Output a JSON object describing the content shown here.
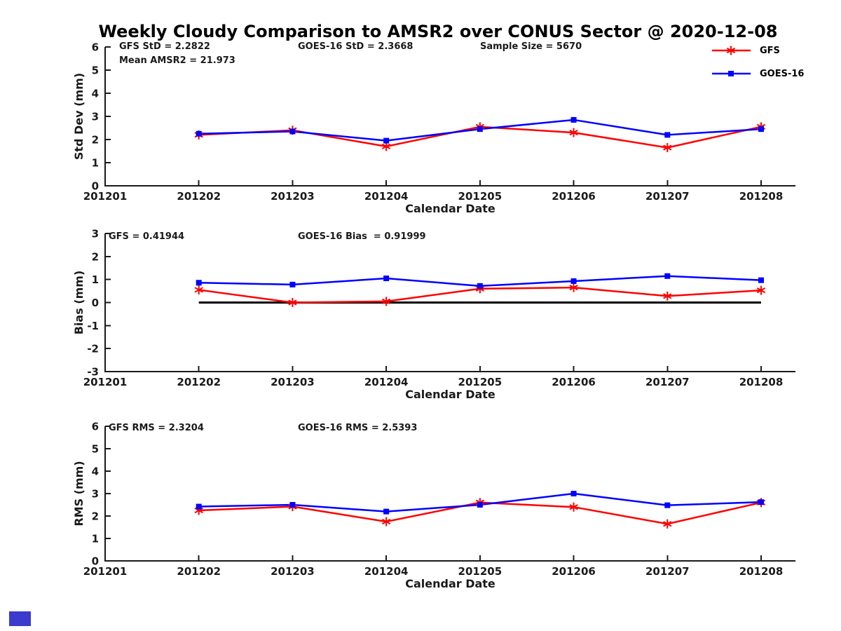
{
  "title": "Weekly Cloudy Comparison to AMSR2 over CONUS Sector @ 2020-12-08",
  "colors": {
    "gfs": "#ff0000",
    "goes16": "#0000ff",
    "axis": "#1a1a1a",
    "zero_line": "#000000",
    "blue_box": "#3b3bcd"
  },
  "legend": {
    "items": [
      {
        "label": "GFS",
        "marker": "asterisk",
        "color": "#ff0000"
      },
      {
        "label": "GOES-16",
        "marker": "square",
        "color": "#0000ff"
      }
    ]
  },
  "chart_data": [
    {
      "type": "line",
      "name": "std-dev-chart",
      "ylabel": "Std Dev (mm)",
      "xlabel": "Calendar Date",
      "ylim": [
        0,
        6
      ],
      "yticks": [
        0,
        1,
        2,
        3,
        4,
        5,
        6
      ],
      "xticklabels": [
        "201201",
        "201202",
        "201203",
        "201204",
        "201205",
        "201206",
        "201207",
        "201208"
      ],
      "categories": [
        "201202",
        "201203",
        "201204",
        "201205",
        "201206",
        "201207",
        "201208"
      ],
      "annotations": [
        "GFS StD = 2.2822",
        "GOES-16 StD = 2.3668",
        "Sample Size = 5670",
        "Mean AMSR2 = 21.973"
      ],
      "series": [
        {
          "name": "GFS",
          "color": "#ff0000",
          "marker": "asterisk",
          "width": 2.5,
          "values": [
            2.2,
            2.4,
            1.7,
            2.55,
            2.3,
            1.65,
            2.55
          ]
        },
        {
          "name": "GOES-16",
          "color": "#0000ff",
          "marker": "square",
          "width": 2.5,
          "values": [
            2.25,
            2.35,
            1.95,
            2.45,
            2.85,
            2.2,
            2.45
          ]
        }
      ]
    },
    {
      "type": "line",
      "name": "bias-chart",
      "ylabel": "Bias (mm)",
      "xlabel": "Calendar Date",
      "ylim": [
        -3,
        3
      ],
      "yticks": [
        -3,
        -2,
        -1,
        0,
        1,
        2,
        3
      ],
      "xticklabels": [
        "201201",
        "201202",
        "201203",
        "201204",
        "201205",
        "201206",
        "201207",
        "201208"
      ],
      "categories": [
        "201202",
        "201203",
        "201204",
        "201205",
        "201206",
        "201207",
        "201208"
      ],
      "annotations": [
        "GFS = 0.41944",
        "GOES-16 Bias  = 0.91999"
      ],
      "series": [
        {
          "name": "zero-reference",
          "color": "#000000",
          "marker": "none",
          "width": 3,
          "values": [
            0,
            0,
            0,
            0,
            0,
            0,
            0
          ]
        },
        {
          "name": "GFS",
          "color": "#ff0000",
          "marker": "asterisk",
          "width": 2.5,
          "values": [
            0.55,
            0.0,
            0.05,
            0.6,
            0.65,
            0.28,
            0.53
          ]
        },
        {
          "name": "GOES-16",
          "color": "#0000ff",
          "marker": "square",
          "width": 2.5,
          "values": [
            0.86,
            0.78,
            1.05,
            0.72,
            0.93,
            1.15,
            0.97
          ]
        }
      ]
    },
    {
      "type": "line",
      "name": "rms-chart",
      "ylabel": "RMS (mm)",
      "xlabel": "Calendar Date",
      "ylim": [
        0,
        6
      ],
      "yticks": [
        0,
        1,
        2,
        3,
        4,
        5,
        6
      ],
      "xticklabels": [
        "201201",
        "201202",
        "201203",
        "201204",
        "201205",
        "201206",
        "201207",
        "201208"
      ],
      "categories": [
        "201202",
        "201203",
        "201204",
        "201205",
        "201206",
        "201207",
        "201208"
      ],
      "annotations": [
        "GFS RMS = 2.3204",
        "GOES-16 RMS = 2.5393"
      ],
      "series": [
        {
          "name": "GFS",
          "color": "#ff0000",
          "marker": "asterisk",
          "width": 2.5,
          "values": [
            2.25,
            2.42,
            1.75,
            2.6,
            2.4,
            1.65,
            2.6
          ]
        },
        {
          "name": "GOES-16",
          "color": "#0000ff",
          "marker": "square",
          "width": 2.5,
          "values": [
            2.42,
            2.5,
            2.2,
            2.5,
            3.0,
            2.48,
            2.62
          ]
        }
      ]
    }
  ]
}
